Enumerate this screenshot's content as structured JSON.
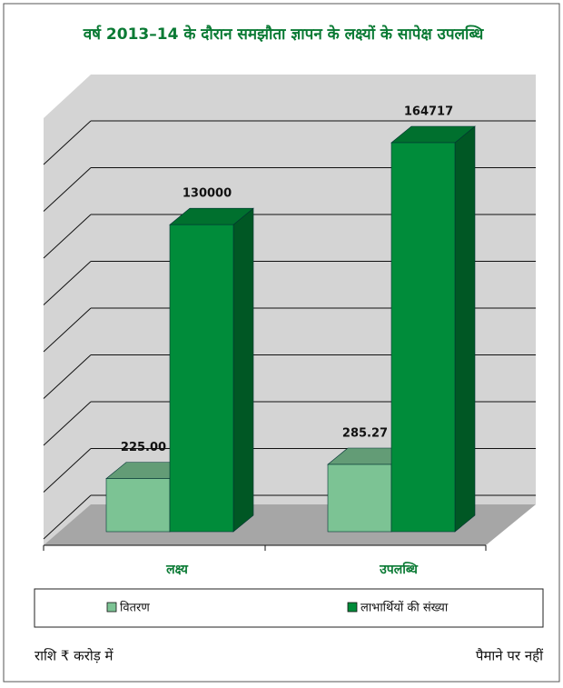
{
  "chart_data": {
    "type": "bar3d",
    "title": "वर्ष 2013–14 के दौरान समझौता ज्ञापन के लक्ष्यों के सापेक्ष उपलब्धि",
    "categories": [
      "लक्ष्य",
      "उपलब्धि"
    ],
    "series": [
      {
        "name": "वितरण",
        "color": "#7cc394",
        "values": [
          225.0,
          285.27
        ],
        "value_labels": [
          "225.00",
          "285.27"
        ]
      },
      {
        "name": "लाभार्थियों की संख्या",
        "color": "#008c3a",
        "values": [
          130000,
          164717
        ]
      }
    ],
    "notes": [
      "राशि ₹ करोड़ में",
      "पैमाने पर नहीं"
    ]
  }
}
